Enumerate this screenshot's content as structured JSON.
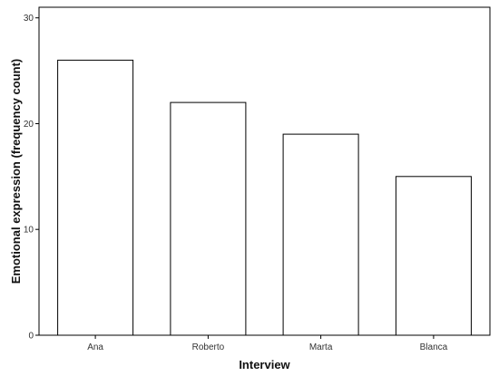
{
  "chart_data": {
    "type": "bar",
    "categories": [
      "Ana",
      "Roberto",
      "Marta",
      "Blanca"
    ],
    "values": [
      26,
      22,
      19,
      15
    ],
    "title": "",
    "xlabel": "Interview",
    "ylabel": "Emotional expression (frequency count)",
    "ylim": [
      0,
      31
    ],
    "yticks": [
      0,
      10,
      20,
      30
    ],
    "ytick_labels": [
      "0",
      "10",
      "20",
      "30"
    ],
    "grid": false,
    "legend": "none",
    "bar_fill": "#ffffff",
    "bar_stroke": "#000000",
    "frame_color": "#000000"
  }
}
